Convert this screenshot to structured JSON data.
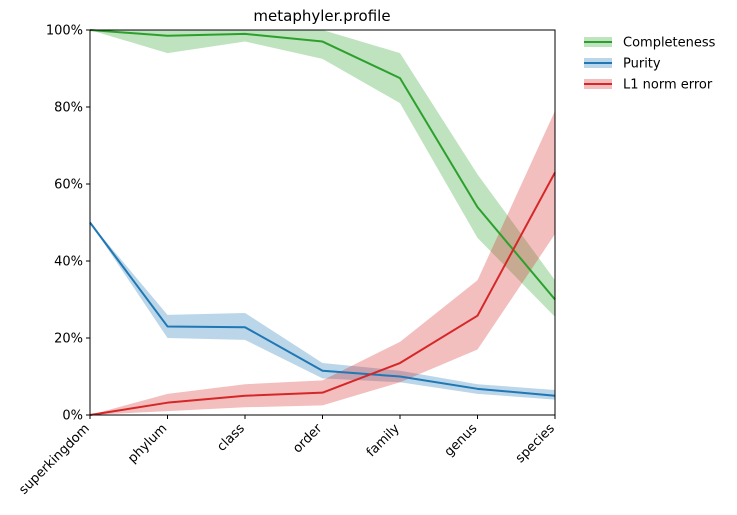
{
  "chart_data": {
    "type": "line",
    "title": "metaphyler.profile",
    "xlabel": "",
    "ylabel": "",
    "categories": [
      "superkingdom",
      "phylum",
      "class",
      "order",
      "family",
      "genus",
      "species"
    ],
    "ylim": [
      0,
      100
    ],
    "ytick_labels": [
      "0%",
      "20%",
      "40%",
      "60%",
      "80%",
      "100%"
    ],
    "grid": false,
    "legend_position": "outside-top-right",
    "series": [
      {
        "name": "Completeness",
        "color": "#2ca02c",
        "values": [
          100,
          98.5,
          99,
          97,
          87.5,
          54,
          30
        ],
        "lower": [
          100,
          94,
          97,
          92.5,
          81,
          46,
          25.5
        ],
        "upper": [
          100,
          100,
          100,
          100,
          94,
          62.5,
          35
        ]
      },
      {
        "name": "Purity",
        "color": "#1f77b4",
        "values": [
          50,
          23,
          22.8,
          11.5,
          10,
          6.8,
          5
        ],
        "lower": [
          50,
          20,
          19.5,
          9.5,
          8.5,
          5.5,
          4
        ],
        "upper": [
          50,
          26,
          26.5,
          13.5,
          11.5,
          8,
          6.5
        ]
      },
      {
        "name": "L1 norm error",
        "color": "#d62728",
        "values": [
          0,
          3.2,
          5,
          5.8,
          13.5,
          25.8,
          63
        ],
        "lower": [
          0,
          1,
          2,
          2.5,
          8.5,
          17,
          47
        ],
        "upper": [
          0,
          5.5,
          8,
          9,
          19,
          35,
          79
        ]
      }
    ]
  }
}
